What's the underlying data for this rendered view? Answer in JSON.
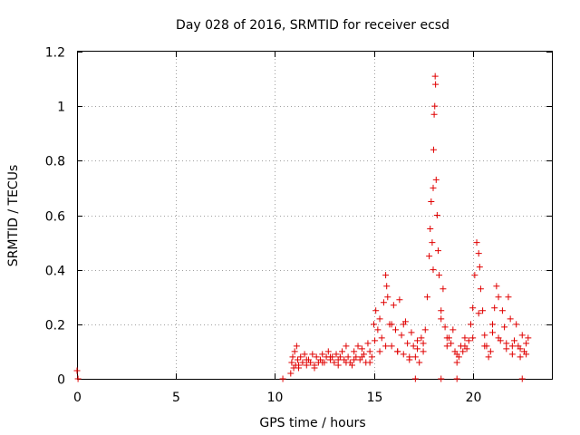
{
  "chart_data": {
    "type": "scatter",
    "title": "Day 028 of 2016, SRMTID for receiver ecsd",
    "xlabel": "GPS time / hours",
    "ylabel": "SRMTID / TECUs",
    "xlim": [
      0,
      24
    ],
    "ylim": [
      0,
      1.2
    ],
    "x_ticks": [
      0,
      5,
      10,
      15,
      20
    ],
    "x_tick_labels": [
      "0",
      "5",
      "10",
      "15",
      "20"
    ],
    "y_ticks": [
      0,
      0.2,
      0.4,
      0.6,
      0.8,
      1.0,
      1.2
    ],
    "y_tick_labels": [
      "0",
      "0.2",
      "0.4",
      "0.6",
      "0.8",
      "1",
      "1.2"
    ],
    "grid": true,
    "marker": "plus",
    "series": [
      {
        "name": "SRMTID",
        "color": "#e00000",
        "x": [
          0.0,
          0.05,
          10.4,
          10.8,
          10.85,
          10.9,
          10.95,
          11.0,
          11.05,
          11.1,
          11.15,
          11.2,
          11.3,
          11.4,
          11.5,
          11.6,
          11.7,
          11.8,
          11.9,
          12.0,
          12.1,
          12.2,
          12.3,
          12.4,
          12.5,
          12.6,
          12.7,
          12.8,
          12.9,
          13.0,
          13.1,
          13.2,
          13.3,
          13.4,
          13.5,
          13.6,
          13.7,
          13.8,
          13.9,
          14.0,
          14.1,
          14.2,
          14.3,
          14.4,
          14.5,
          14.6,
          14.7,
          14.8,
          14.9,
          15.0,
          15.05,
          15.1,
          15.2,
          15.3,
          15.4,
          15.5,
          15.6,
          15.65,
          15.7,
          15.8,
          15.9,
          16.0,
          16.1,
          16.2,
          16.3,
          16.4,
          16.5,
          16.6,
          16.7,
          16.8,
          16.9,
          17.0,
          17.1,
          17.2,
          17.3,
          17.4,
          17.5,
          17.6,
          17.7,
          17.8,
          17.85,
          17.9,
          17.95,
          18.0,
          18.02,
          18.05,
          18.08,
          18.1,
          18.12,
          18.15,
          18.2,
          18.25,
          18.3,
          18.4,
          18.5,
          18.6,
          18.7,
          18.8,
          18.9,
          19.0,
          19.1,
          19.2,
          19.3,
          19.4,
          19.5,
          19.6,
          19.7,
          19.8,
          19.9,
          20.0,
          20.1,
          20.2,
          20.3,
          20.35,
          20.4,
          20.5,
          20.6,
          20.7,
          20.8,
          20.9,
          21.0,
          21.1,
          21.2,
          21.3,
          21.4,
          21.5,
          21.6,
          21.7,
          21.8,
          21.9,
          22.0,
          22.1,
          22.2,
          22.3,
          22.4,
          22.5,
          22.6,
          22.7,
          22.8,
          11.2,
          11.6,
          12.0,
          12.4,
          12.8,
          13.2,
          13.6,
          14.0,
          14.4,
          14.8,
          15.3,
          15.6,
          15.9,
          16.2,
          16.5,
          16.8,
          17.2,
          17.5,
          18.0,
          18.4,
          18.7,
          19.2,
          19.6,
          20.0,
          20.3,
          20.6,
          21.0,
          21.3,
          21.7,
          22.0,
          22.4,
          22.7,
          17.1,
          18.4,
          19.2,
          22.5
        ],
        "y": [
          0.03,
          0.0,
          0.0,
          0.02,
          0.06,
          0.08,
          0.04,
          0.1,
          0.05,
          0.12,
          0.07,
          0.04,
          0.08,
          0.06,
          0.09,
          0.05,
          0.07,
          0.06,
          0.09,
          0.05,
          0.08,
          0.06,
          0.07,
          0.09,
          0.06,
          0.08,
          0.1,
          0.07,
          0.08,
          0.06,
          0.09,
          0.07,
          0.08,
          0.1,
          0.07,
          0.12,
          0.08,
          0.06,
          0.05,
          0.1,
          0.08,
          0.12,
          0.07,
          0.11,
          0.09,
          0.06,
          0.13,
          0.1,
          0.08,
          0.2,
          0.14,
          0.25,
          0.18,
          0.22,
          0.15,
          0.28,
          0.38,
          0.34,
          0.3,
          0.2,
          0.12,
          0.27,
          0.18,
          0.1,
          0.29,
          0.16,
          0.09,
          0.21,
          0.13,
          0.07,
          0.17,
          0.12,
          0.08,
          0.14,
          0.06,
          0.15,
          0.1,
          0.18,
          0.3,
          0.45,
          0.55,
          0.65,
          0.5,
          0.7,
          0.84,
          0.97,
          1.0,
          1.11,
          1.08,
          0.73,
          0.6,
          0.47,
          0.38,
          0.25,
          0.33,
          0.19,
          0.12,
          0.15,
          0.13,
          0.18,
          0.1,
          0.06,
          0.08,
          0.12,
          0.1,
          0.15,
          0.11,
          0.14,
          0.2,
          0.26,
          0.38,
          0.5,
          0.46,
          0.41,
          0.33,
          0.25,
          0.16,
          0.12,
          0.08,
          0.1,
          0.17,
          0.26,
          0.34,
          0.3,
          0.14,
          0.25,
          0.19,
          0.11,
          0.3,
          0.22,
          0.09,
          0.14,
          0.2,
          0.12,
          0.08,
          0.16,
          0.1,
          0.13,
          0.15,
          0.05,
          0.07,
          0.04,
          0.06,
          0.08,
          0.05,
          0.06,
          0.07,
          0.08,
          0.06,
          0.1,
          0.12,
          0.2,
          0.1,
          0.2,
          0.08,
          0.11,
          0.13,
          0.4,
          0.22,
          0.15,
          0.09,
          0.12,
          0.15,
          0.24,
          0.12,
          0.2,
          0.15,
          0.13,
          0.12,
          0.11,
          0.09,
          0.0,
          0.0,
          0.0,
          0.0
        ]
      }
    ]
  }
}
